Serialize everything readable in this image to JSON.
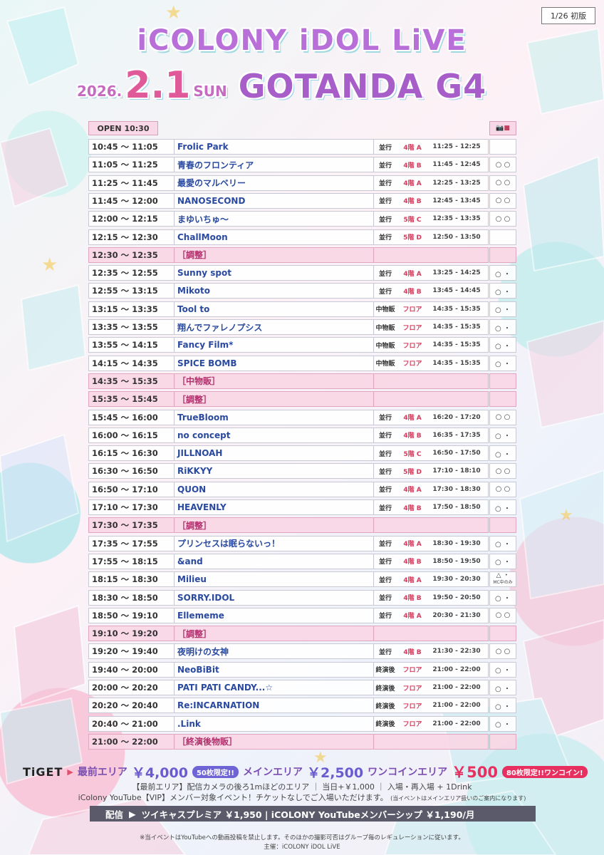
{
  "edition": "1/26 初版",
  "title": "iCOLONY iDOL LiVE",
  "date": {
    "year": "2026.",
    "md": "2.1",
    "dow": "SUN",
    "venue": "GOTANDA G4"
  },
  "open": "OPEN 10:30",
  "camera_header": "📷■",
  "rows": [
    {
      "time": "10:45 ～ 11:05",
      "name": "Frolic Park",
      "type": "並行",
      "floor": "4階 A",
      "bt": "11:25 - 12:25",
      "cam": ""
    },
    {
      "time": "11:05 ～ 11:25",
      "name": "青春のフロンティア",
      "type": "並行",
      "floor": "4階 B",
      "bt": "11:45 - 12:45",
      "cam": "○ ○"
    },
    {
      "time": "11:25 ～ 11:45",
      "name": "最愛のマルベリー",
      "type": "並行",
      "floor": "4階 A",
      "bt": "12:25 - 13:25",
      "cam": "○ ○"
    },
    {
      "time": "11:45 ～ 12:00",
      "name": "NANOSECOND",
      "type": "並行",
      "floor": "4階 B",
      "bt": "12:45 - 13:45",
      "cam": "○ ○"
    },
    {
      "time": "12:00 ～ 12:15",
      "name": "まゆいちゅ～",
      "type": "並行",
      "floor": "5階 C",
      "bt": "12:35 - 13:35",
      "cam": "○ ○"
    },
    {
      "time": "12:15 ～ 12:30",
      "name": "ChallMoon",
      "type": "並行",
      "floor": "5階 D",
      "bt": "12:50 - 13:50",
      "cam": ""
    },
    {
      "time": "12:30 ～ 12:35",
      "name": "［調整］",
      "gap": true
    },
    {
      "time": "12:35 ～ 12:55",
      "name": "Sunny spot",
      "type": "並行",
      "floor": "4階 A",
      "bt": "13:25 - 14:25",
      "cam": "○ ・"
    },
    {
      "time": "12:55 ～ 13:15",
      "name": "Mikoto",
      "type": "並行",
      "floor": "4階 B",
      "bt": "13:45 - 14:45",
      "cam": "○ ・"
    },
    {
      "time": "13:15 ～ 13:35",
      "name": "Tool to",
      "type": "中物販",
      "floor": "フロア",
      "bt": "14:35 - 15:35",
      "cam": "○ ・"
    },
    {
      "time": "13:35 ～ 13:55",
      "name": "翔んでファレノプシス",
      "type": "中物販",
      "floor": "フロア",
      "bt": "14:35 - 15:35",
      "cam": "○ ・"
    },
    {
      "time": "13:55 ～ 14:15",
      "name": "Fancy Film*",
      "type": "中物販",
      "floor": "フロア",
      "bt": "14:35 - 15:35",
      "cam": "○ ・"
    },
    {
      "time": "14:15 ～ 14:35",
      "name": "SPICE BOMB",
      "type": "中物販",
      "floor": "フロア",
      "bt": "14:35 - 15:35",
      "cam": "○ ・"
    },
    {
      "time": "14:35 ～ 15:35",
      "name": "［中物販］",
      "gap": true
    },
    {
      "time": "15:35 ～ 15:45",
      "name": "［調整］",
      "gap": true
    },
    {
      "time": "15:45 ～ 16:00",
      "name": "TrueBloom",
      "type": "並行",
      "floor": "4階 A",
      "bt": "16:20 - 17:20",
      "cam": "○ ○"
    },
    {
      "time": "16:00 ～ 16:15",
      "name": "no concept",
      "type": "並行",
      "floor": "4階 B",
      "bt": "16:35 - 17:35",
      "cam": "○ ・"
    },
    {
      "time": "16:15 ～ 16:30",
      "name": "JILLNOAH",
      "type": "並行",
      "floor": "5階 C",
      "bt": "16:50 - 17:50",
      "cam": "○ ・"
    },
    {
      "time": "16:30 ～ 16:50",
      "name": "RiKKYY",
      "type": "並行",
      "floor": "5階 D",
      "bt": "17:10 - 18:10",
      "cam": "○ ○"
    },
    {
      "time": "16:50 ～ 17:10",
      "name": "QUON",
      "type": "並行",
      "floor": "4階 A",
      "bt": "17:30 - 18:30",
      "cam": "○ ○"
    },
    {
      "time": "17:10 ～ 17:30",
      "name": "HEAVENLY",
      "type": "並行",
      "floor": "4階 B",
      "bt": "17:50 - 18:50",
      "cam": "○ ・"
    },
    {
      "time": "17:30 ～ 17:35",
      "name": "［調整］",
      "gap": true
    },
    {
      "time": "17:35 ～ 17:55",
      "name": "プリンセスは眠らないっ！",
      "type": "並行",
      "floor": "4階 A",
      "bt": "18:30 - 19:30",
      "cam": "○ ・"
    },
    {
      "time": "17:55 ～ 18:15",
      "name": "&and",
      "type": "並行",
      "floor": "4階 B",
      "bt": "18:50 - 19:50",
      "cam": "○ ・"
    },
    {
      "time": "18:15 ～ 18:30",
      "name": "Milieu",
      "type": "並行",
      "floor": "4階 A",
      "bt": "19:30 - 20:30",
      "cam": "△ ・",
      "mc": "MC中のみ"
    },
    {
      "time": "18:30 ～ 18:50",
      "name": "SORRY.IDOL",
      "type": "並行",
      "floor": "4階 B",
      "bt": "19:50 - 20:50",
      "cam": "○ ・"
    },
    {
      "time": "18:50 ～ 19:10",
      "name": "Ellememe",
      "type": "並行",
      "floor": "4階 A",
      "bt": "20:30 - 21:30",
      "cam": "○ ○"
    },
    {
      "time": "19:10 ～ 19:20",
      "name": "［調整］",
      "gap": true
    },
    {
      "time": "19:20 ～ 19:40",
      "name": "夜明けの女神",
      "type": "並行",
      "floor": "4階 B",
      "bt": "21:30 - 22:30",
      "cam": "○ ○"
    },
    {
      "time": "19:40 ～ 20:00",
      "name": "NeoBiBit",
      "type": "終演後",
      "floor": "フロア",
      "bt": "21:00 - 22:00",
      "cam": "○ ・"
    },
    {
      "time": "20:00 ～ 20:20",
      "name": "PATI PATI CANDY...☆",
      "type": "終演後",
      "floor": "フロア",
      "bt": "21:00 - 22:00",
      "cam": "○ ・"
    },
    {
      "time": "20:20 ～ 20:40",
      "name": "Re:INCARNATION",
      "type": "終演後",
      "floor": "フロア",
      "bt": "21:00 - 22:00",
      "cam": "○ ・"
    },
    {
      "time": "20:40 ～ 21:00",
      "name": ".Link",
      "type": "終演後",
      "floor": "フロア",
      "bt": "21:00 - 22:00",
      "cam": "○ ・"
    },
    {
      "time": "21:00 ～ 22:00",
      "name": "［終演後物販］",
      "gap": true
    }
  ],
  "tickets": {
    "logo": "TiGET",
    "front_label": "最前エリア",
    "front_price": "￥4,000",
    "front_badge": "50枚限定!!",
    "main_label": "メインエリア",
    "main_price": "￥2,500",
    "coin_label": "ワンコインエリア",
    "coin_price": "￥500",
    "coin_badge": "80枚限定!!ワンコイン!"
  },
  "info_line1": "【最前エリア】配信カメラの後ろ1mほどのエリア ｜ 当日+￥1,000 ｜ 入場・再入場 + 1Drink",
  "info_line2": "iColony YouTube【VIP】メンバー対象イベント！チケットなしでご入場いただけます。",
  "info_line2_small": "(当イベントはメインエリア扱いのご案内になります)",
  "stream": {
    "label": "配信",
    "text": "ツイキャスプレミア ￥1,950 | iCOLONY YouTubeメンバーシップ ￥1,190/月"
  },
  "note": "※当イベントはYouTubeへの動画投稿を禁止します。そのほかの撮影可否はグループ毎のレギュレーションに従います。",
  "organizer": "主催：iCOLONY iDOL LiVE"
}
